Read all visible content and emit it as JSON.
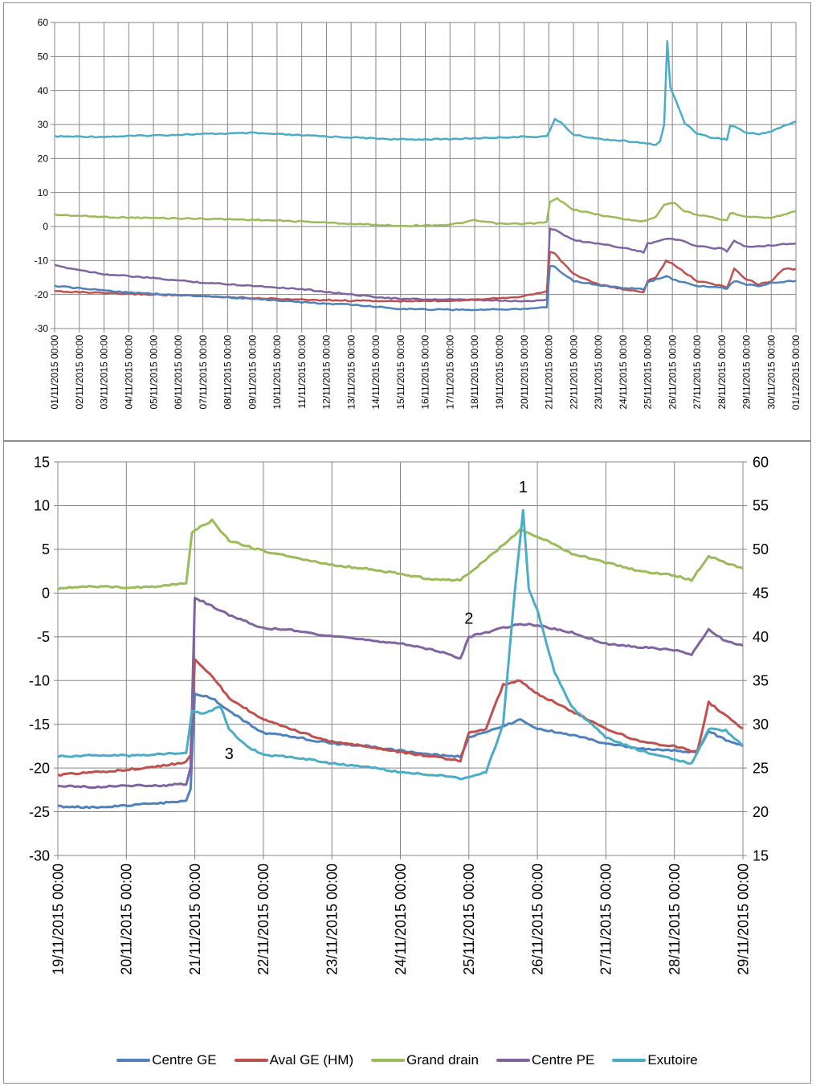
{
  "chart_data": [
    {
      "type": "line",
      "title": "",
      "xlabel": "",
      "ylabel": "",
      "grid": true,
      "ylim": [
        -30,
        60
      ],
      "yticks": [
        -30,
        -20,
        -10,
        0,
        10,
        20,
        30,
        40,
        50,
        60
      ],
      "xlim": [
        "01/11/2015 00:00",
        "01/12/2015 00:00"
      ],
      "xticks": [
        "01/11/2015 00:00",
        "02/11/2015 00:00",
        "03/11/2015 00:00",
        "04/11/2015 00:00",
        "05/11/2015 00:00",
        "06/11/2015 00:00",
        "07/11/2015 00:00",
        "08/11/2015 00:00",
        "09/11/2015 00:00",
        "10/11/2015 00:00",
        "11/11/2015 00:00",
        "12/11/2015 00:00",
        "13/11/2015 00:00",
        "14/11/2015 00:00",
        "15/11/2015 00:00",
        "16/11/2015 00:00",
        "17/11/2015 00:00",
        "18/11/2015 00:00",
        "19/11/2015 00:00",
        "20/11/2015 00:00",
        "21/11/2015 00:00",
        "22/11/2015 00:00",
        "23/11/2015 00:00",
        "24/11/2015 00:00",
        "25/11/2015 00:00",
        "26/11/2015 00:00",
        "27/11/2015 00:00",
        "28/11/2015 00:00",
        "29/11/2015 00:00",
        "30/11/2015 00:00",
        "01/12/2015 00:00"
      ],
      "series": [
        {
          "name": "Exutoire",
          "color": "#4bacc6",
          "x": [
            "01/11/2015 00:00",
            "03/11/2015 00:00",
            "05/11/2015 00:00",
            "07/11/2015 00:00",
            "09/11/2015 00:00",
            "11/11/2015 00:00",
            "13/11/2015 00:00",
            "15/11/2015 00:00",
            "17/11/2015 00:00",
            "19/11/2015 00:00",
            "20/11/2015 00:00",
            "20/11/2015 22:00",
            "21/11/2015 06:00",
            "21/11/2015 12:00",
            "22/11/2015 00:00",
            "23/11/2015 00:00",
            "24/11/2015 00:00",
            "24/11/2015 20:00",
            "25/11/2015 08:00",
            "25/11/2015 12:00",
            "25/11/2015 16:00",
            "25/11/2015 19:00",
            "25/11/2015 22:00",
            "26/11/2015 06:00",
            "26/11/2015 12:00",
            "27/11/2015 00:00",
            "27/11/2015 12:00",
            "28/11/2015 00:00",
            "28/11/2015 05:00",
            "28/11/2015 08:00",
            "28/11/2015 12:00",
            "29/11/2015 00:00",
            "29/11/2015 12:00",
            "30/11/2015 00:00",
            "30/11/2015 12:00",
            "01/12/2015 00:00"
          ],
          "y": [
            26.5,
            26.4,
            26.8,
            27.2,
            27.5,
            26.8,
            26.2,
            25.6,
            25.7,
            26.2,
            26.4,
            26.5,
            31.5,
            30.5,
            27,
            25.8,
            25.2,
            24.5,
            24.1,
            25,
            30,
            54.4,
            41,
            35,
            30.5,
            27.4,
            26.3,
            25.8,
            25.6,
            29.5,
            29.5,
            27.5,
            27.2,
            28,
            29.5,
            30.9
          ]
        },
        {
          "name": "Grand drain",
          "color": "#9bbb59",
          "x": [
            "01/11/2015 00:00",
            "03/11/2015 00:00",
            "05/11/2015 00:00",
            "07/11/2015 00:00",
            "09/11/2015 00:00",
            "11/11/2015 00:00",
            "13/11/2015 00:00",
            "15/11/2015 00:00",
            "17/11/2015 00:00",
            "18/11/2015 00:00",
            "19/11/2015 00:00",
            "20/11/2015 00:00",
            "20/11/2015 22:00",
            "21/11/2015 01:00",
            "21/11/2015 08:00",
            "22/11/2015 00:00",
            "23/11/2015 00:00",
            "24/11/2015 00:00",
            "24/11/2015 20:00",
            "25/11/2015 08:00",
            "25/11/2015 16:00",
            "26/11/2015 02:00",
            "26/11/2015 12:00",
            "27/11/2015 00:00",
            "28/11/2015 00:00",
            "28/11/2015 05:00",
            "28/11/2015 08:00",
            "29/11/2015 00:00",
            "30/11/2015 00:00",
            "01/12/2015 00:00"
          ],
          "y": [
            3.5,
            2.8,
            2.5,
            2.3,
            2,
            1.5,
            0.8,
            0.2,
            0.5,
            1.8,
            0.8,
            0.8,
            1.2,
            7.2,
            8.2,
            5,
            3.5,
            2.2,
            1.5,
            3,
            6.5,
            7,
            4.5,
            3.5,
            2,
            1.8,
            4,
            3,
            2.5,
            4.5
          ]
        },
        {
          "name": "Centre PE",
          "color": "#8064a2",
          "x": [
            "01/11/2015 00:00",
            "03/11/2015 00:00",
            "05/11/2015 00:00",
            "07/11/2015 00:00",
            "09/11/2015 00:00",
            "11/11/2015 00:00",
            "13/11/2015 00:00",
            "15/11/2015 00:00",
            "17/11/2015 00:00",
            "19/11/2015 00:00",
            "20/11/2015 00:00",
            "20/11/2015 22:00",
            "21/11/2015 01:00",
            "21/11/2015 06:00",
            "22/11/2015 00:00",
            "23/11/2015 00:00",
            "24/11/2015 00:00",
            "24/11/2015 20:00",
            "25/11/2015 00:00",
            "25/11/2015 06:00",
            "25/11/2015 18:00",
            "26/11/2015 00:00",
            "26/11/2015 12:00",
            "27/11/2015 00:00",
            "28/11/2015 00:00",
            "28/11/2015 05:00",
            "28/11/2015 12:00",
            "29/11/2015 00:00",
            "30/11/2015 00:00",
            "01/12/2015 00:00"
          ],
          "y": [
            -11.5,
            -14,
            -15.2,
            -16.5,
            -17.4,
            -18.4,
            -20,
            -21.3,
            -21.5,
            -21.8,
            -22,
            -21.5,
            -0.5,
            -1,
            -4,
            -5,
            -6.2,
            -7.6,
            -5,
            -4.8,
            -3.5,
            -3.5,
            -4.5,
            -5.8,
            -6.5,
            -7.2,
            -4.2,
            -6,
            -5.5,
            -5
          ]
        },
        {
          "name": "Aval GE (HM)",
          "color": "#c0504d",
          "x": [
            "01/11/2015 00:00",
            "03/11/2015 00:00",
            "05/11/2015 00:00",
            "07/11/2015 00:00",
            "09/11/2015 00:00",
            "11/11/2015 00:00",
            "13/11/2015 00:00",
            "15/11/2015 00:00",
            "17/11/2015 00:00",
            "19/11/2015 00:00",
            "20/11/2015 00:00",
            "20/11/2015 22:00",
            "21/11/2015 01:00",
            "21/11/2015 06:00",
            "22/11/2015 00:00",
            "23/11/2015 00:00",
            "24/11/2015 00:00",
            "24/11/2015 20:00",
            "25/11/2015 00:00",
            "25/11/2015 08:00",
            "25/11/2015 18:00",
            "26/11/2015 00:00",
            "26/11/2015 12:00",
            "27/11/2015 00:00",
            "28/11/2015 00:00",
            "28/11/2015 05:00",
            "28/11/2015 12:00",
            "29/11/2015 00:00",
            "29/11/2015 12:00",
            "30/11/2015 00:00",
            "30/11/2015 12:00",
            "01/12/2015 00:00"
          ],
          "y": [
            -19,
            -19.6,
            -20,
            -20.5,
            -21,
            -21.5,
            -21.8,
            -22,
            -21.8,
            -21,
            -20.5,
            -19,
            -7.5,
            -8,
            -14,
            -17,
            -18.5,
            -19.2,
            -16,
            -15,
            -10,
            -11,
            -13.5,
            -16,
            -17.5,
            -18,
            -12.5,
            -15.5,
            -17,
            -16,
            -12.5,
            -12.5
          ]
        },
        {
          "name": "Centre GE",
          "color": "#4f81bd",
          "x": [
            "01/11/2015 00:00",
            "03/11/2015 00:00",
            "05/11/2015 00:00",
            "07/11/2015 00:00",
            "09/11/2015 00:00",
            "11/11/2015 00:00",
            "13/11/2015 00:00",
            "15/11/2015 00:00",
            "17/11/2015 00:00",
            "19/11/2015 00:00",
            "20/11/2015 00:00",
            "20/11/2015 22:00",
            "21/11/2015 01:00",
            "21/11/2015 06:00",
            "22/11/2015 00:00",
            "23/11/2015 00:00",
            "24/11/2015 00:00",
            "24/11/2015 20:00",
            "25/11/2015 00:00",
            "25/11/2015 08:00",
            "25/11/2015 18:00",
            "26/11/2015 00:00",
            "26/11/2015 12:00",
            "27/11/2015 00:00",
            "28/11/2015 00:00",
            "28/11/2015 05:00",
            "28/11/2015 12:00",
            "29/11/2015 00:00",
            "29/11/2015 12:00",
            "30/11/2015 00:00",
            "01/12/2015 00:00"
          ],
          "y": [
            -17.5,
            -18.8,
            -19.8,
            -20.5,
            -21.2,
            -22.3,
            -23,
            -24.2,
            -24.5,
            -24.4,
            -24.2,
            -23.8,
            -11.5,
            -12,
            -16,
            -17.2,
            -18,
            -18.5,
            -16.5,
            -15.5,
            -14.5,
            -15.5,
            -16.5,
            -17.5,
            -18,
            -18.2,
            -16,
            -17,
            -17.5,
            -16.5,
            -16
          ]
        }
      ]
    },
    {
      "type": "line",
      "title": "",
      "xlabel": "",
      "ylabel": "",
      "grid": true,
      "ylim": [
        -30,
        15
      ],
      "yticks": [
        -30,
        -25,
        -20,
        -15,
        -10,
        -5,
        0,
        5,
        10,
        15
      ],
      "y2lim": [
        15,
        60
      ],
      "y2ticks": [
        15,
        20,
        25,
        30,
        35,
        40,
        45,
        50,
        55,
        60
      ],
      "xlim": [
        "19/11/2015 00:00",
        "29/11/2015 00:00"
      ],
      "xticks": [
        "19/11/2015 00:00",
        "20/11/2015 00:00",
        "21/11/2015 00:00",
        "22/11/2015 00:00",
        "23/11/2015 00:00",
        "24/11/2015 00:00",
        "25/11/2015 00:00",
        "26/11/2015 00:00",
        "27/11/2015 00:00",
        "28/11/2015 00:00",
        "29/11/2015 00:00"
      ],
      "annotations": [
        {
          "text": "1",
          "x": "25/11/2015 19:00",
          "y": 11.5
        },
        {
          "text": "2",
          "x": "25/11/2015 00:00",
          "y": -3.5
        },
        {
          "text": "3",
          "x": "21/11/2015 12:00",
          "y": -19
        }
      ],
      "legend": {
        "position": "bottom"
      },
      "series": [
        {
          "name": "Centre GE",
          "color": "#4f81bd",
          "axis": "left",
          "x": [
            "19/11/2015 00:00",
            "19/11/2015 12:00",
            "20/11/2015 00:00",
            "20/11/2015 12:00",
            "20/11/2015 21:00",
            "20/11/2015 22:30",
            "21/11/2015 00:00",
            "21/11/2015 06:00",
            "21/11/2015 12:00",
            "22/11/2015 00:00",
            "22/11/2015 12:00",
            "23/11/2015 00:00",
            "23/11/2015 12:00",
            "24/11/2015 00:00",
            "24/11/2015 12:00",
            "24/11/2015 21:00",
            "25/11/2015 00:00",
            "25/11/2015 12:00",
            "25/11/2015 18:00",
            "26/11/2015 00:00",
            "26/11/2015 12:00",
            "27/11/2015 00:00",
            "27/11/2015 12:00",
            "28/11/2015 00:00",
            "28/11/2015 08:00",
            "28/11/2015 12:00",
            "28/11/2015 18:00",
            "29/11/2015 00:00"
          ],
          "y": [
            -24.4,
            -24.5,
            -24.3,
            -24,
            -23.8,
            -22.5,
            -11.5,
            -12,
            -13.5,
            -16,
            -16.5,
            -17.2,
            -17.5,
            -18,
            -18.5,
            -18.7,
            -16.5,
            -15.2,
            -14.5,
            -15.5,
            -16.2,
            -17.2,
            -17.8,
            -18,
            -18.2,
            -15.8,
            -16.8,
            -17.5
          ]
        },
        {
          "name": "Aval GE (HM)",
          "color": "#c0504d",
          "axis": "left",
          "x": [
            "19/11/2015 00:00",
            "19/11/2015 12:00",
            "20/11/2015 00:00",
            "20/11/2015 12:00",
            "20/11/2015 21:00",
            "20/11/2015 22:30",
            "21/11/2015 00:00",
            "21/11/2015 06:00",
            "21/11/2015 12:00",
            "22/11/2015 00:00",
            "22/11/2015 12:00",
            "23/11/2015 00:00",
            "23/11/2015 12:00",
            "24/11/2015 00:00",
            "24/11/2015 12:00",
            "24/11/2015 21:00",
            "25/11/2015 00:00",
            "25/11/2015 06:00",
            "25/11/2015 12:00",
            "25/11/2015 18:00",
            "26/11/2015 00:00",
            "26/11/2015 12:00",
            "27/11/2015 00:00",
            "27/11/2015 12:00",
            "28/11/2015 00:00",
            "28/11/2015 08:00",
            "28/11/2015 12:00",
            "28/11/2015 18:00",
            "29/11/2015 00:00"
          ],
          "y": [
            -20.8,
            -20.5,
            -20.2,
            -19.8,
            -19.3,
            -18.5,
            -7.5,
            -9.5,
            -12,
            -14.5,
            -15.8,
            -17,
            -17.5,
            -18.2,
            -18.7,
            -19.2,
            -16,
            -15.5,
            -10.5,
            -10,
            -11.5,
            -13.5,
            -15.5,
            -17,
            -17.5,
            -18.2,
            -12.5,
            -14,
            -15.5
          ]
        },
        {
          "name": "Grand drain",
          "color": "#9bbb59",
          "axis": "left",
          "x": [
            "19/11/2015 00:00",
            "19/11/2015 12:00",
            "20/11/2015 00:00",
            "20/11/2015 12:00",
            "20/11/2015 21:00",
            "20/11/2015 23:00",
            "21/11/2015 06:00",
            "21/11/2015 12:00",
            "22/11/2015 00:00",
            "22/11/2015 12:00",
            "23/11/2015 00:00",
            "23/11/2015 12:00",
            "24/11/2015 00:00",
            "24/11/2015 12:00",
            "24/11/2015 21:00",
            "25/11/2015 03:00",
            "25/11/2015 12:00",
            "25/11/2015 18:00",
            "26/11/2015 00:00",
            "26/11/2015 12:00",
            "27/11/2015 00:00",
            "27/11/2015 12:00",
            "28/11/2015 00:00",
            "28/11/2015 06:00",
            "28/11/2015 12:00",
            "29/11/2015 00:00"
          ],
          "y": [
            0.5,
            0.8,
            0.6,
            0.8,
            1.2,
            7,
            8.3,
            6,
            4.8,
            4,
            3.2,
            2.8,
            2.2,
            1.5,
            1.5,
            3,
            5.5,
            7.2,
            6.5,
            4.5,
            3.5,
            2.5,
            2,
            1.5,
            4.2,
            2.8
          ]
        },
        {
          "name": "Centre PE",
          "color": "#8064a2",
          "axis": "left",
          "x": [
            "19/11/2015 00:00",
            "19/11/2015 12:00",
            "20/11/2015 00:00",
            "20/11/2015 12:00",
            "20/11/2015 21:00",
            "20/11/2015 22:30",
            "21/11/2015 00:00",
            "21/11/2015 06:00",
            "21/11/2015 12:00",
            "22/11/2015 00:00",
            "22/11/2015 12:00",
            "23/11/2015 00:00",
            "23/11/2015 12:00",
            "24/11/2015 00:00",
            "24/11/2015 12:00",
            "24/11/2015 21:00",
            "25/11/2015 00:00",
            "25/11/2015 12:00",
            "25/11/2015 18:00",
            "26/11/2015 00:00",
            "26/11/2015 12:00",
            "27/11/2015 00:00",
            "27/11/2015 12:00",
            "28/11/2015 00:00",
            "28/11/2015 06:00",
            "28/11/2015 12:00",
            "28/11/2015 18:00",
            "29/11/2015 00:00"
          ],
          "y": [
            -22,
            -22.2,
            -22,
            -22,
            -21.8,
            -20,
            -0.5,
            -1.5,
            -2.5,
            -4,
            -4.3,
            -5,
            -5.3,
            -5.8,
            -6.5,
            -7.5,
            -5,
            -4,
            -3.5,
            -3.7,
            -4.5,
            -5.8,
            -6.2,
            -6.5,
            -7,
            -4.2,
            -5.5,
            -6
          ]
        },
        {
          "name": "Exutoire",
          "color": "#4bacc6",
          "axis": "right",
          "x": [
            "19/11/2015 00:00",
            "19/11/2015 12:00",
            "20/11/2015 00:00",
            "20/11/2015 12:00",
            "20/11/2015 21:00",
            "20/11/2015 23:00",
            "21/11/2015 03:00",
            "21/11/2015 09:00",
            "21/11/2015 12:00",
            "21/11/2015 18:00",
            "22/11/2015 00:00",
            "22/11/2015 12:00",
            "23/11/2015 00:00",
            "23/11/2015 12:00",
            "24/11/2015 00:00",
            "24/11/2015 12:00",
            "24/11/2015 21:00",
            "25/11/2015 06:00",
            "25/11/2015 12:00",
            "25/11/2015 16:00",
            "25/11/2015 19:00",
            "25/11/2015 21:00",
            "26/11/2015 00:00",
            "26/11/2015 06:00",
            "26/11/2015 12:00",
            "27/11/2015 00:00",
            "27/11/2015 12:00",
            "28/11/2015 00:00",
            "28/11/2015 06:00",
            "28/11/2015 12:00",
            "28/11/2015 18:00",
            "29/11/2015 00:00"
          ],
          "y": [
            26.3,
            26.5,
            26.4,
            26.6,
            26.8,
            31.5,
            31.2,
            32,
            29.5,
            27.5,
            26.5,
            26.2,
            25.5,
            25.2,
            24.5,
            24.2,
            23.8,
            24.5,
            30,
            45,
            54.5,
            45.5,
            43,
            36,
            32,
            28.5,
            27,
            26,
            25.5,
            29.5,
            29.3,
            27.5
          ]
        }
      ]
    }
  ]
}
